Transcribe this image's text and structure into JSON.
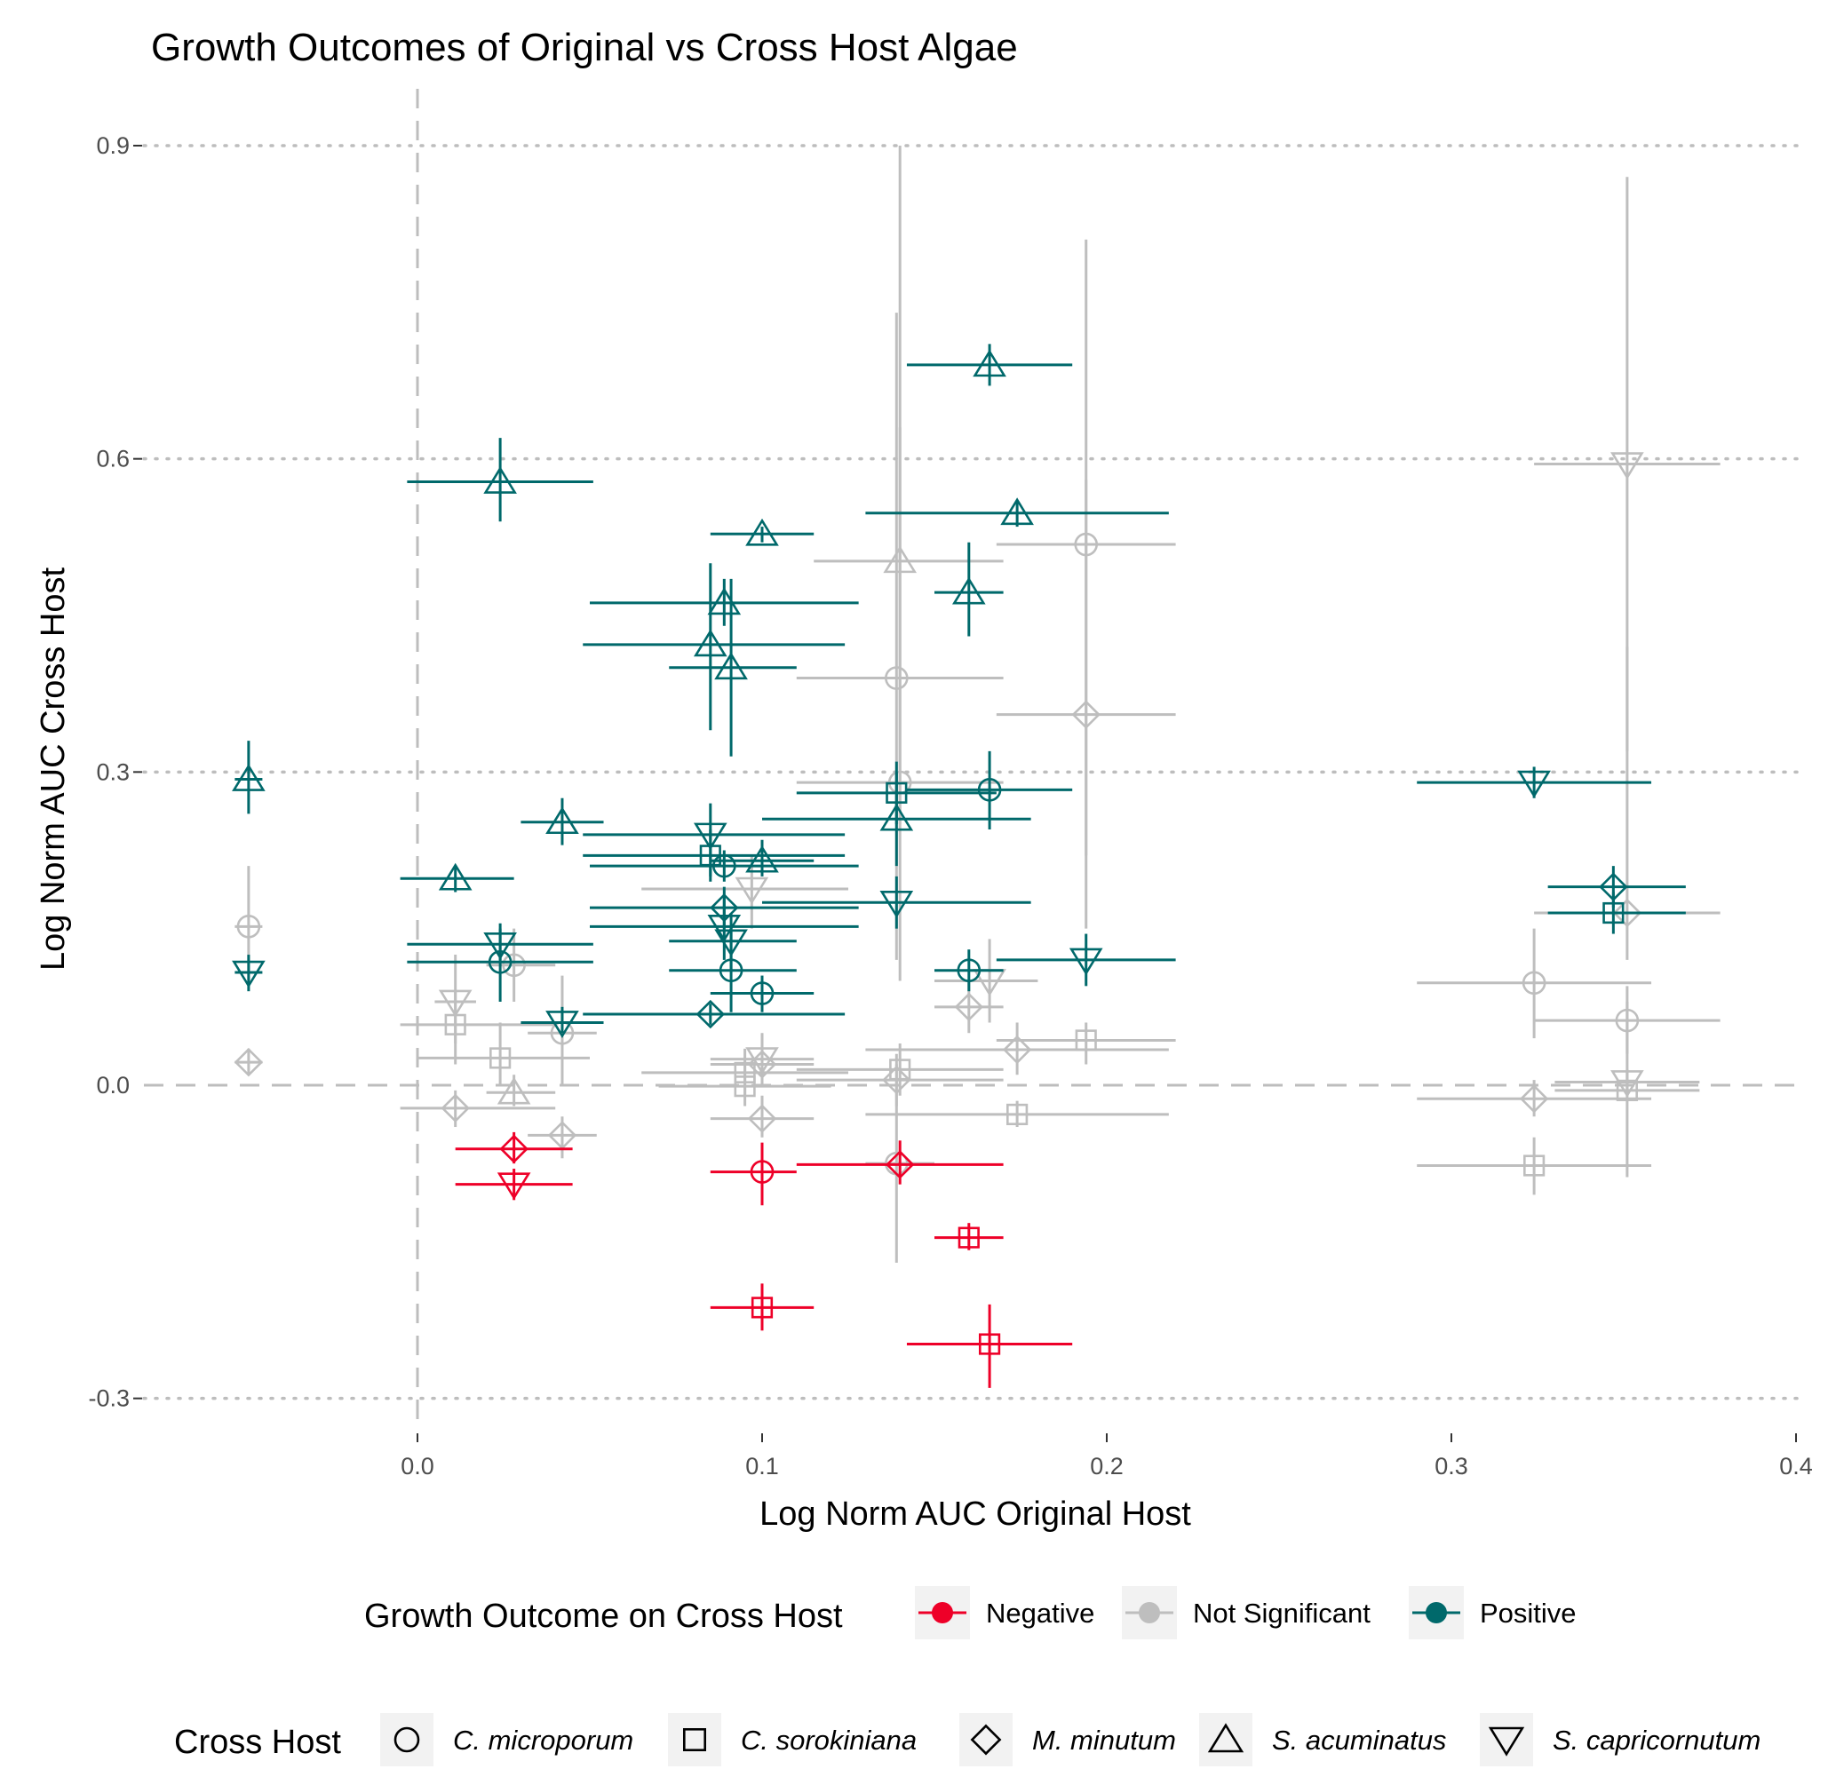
{
  "chart_data": {
    "type": "scatter",
    "title": "Growth Outcomes of Original vs Cross Host Algae",
    "xlabel": "Log Norm AUC Original Host",
    "ylabel": "Log Norm AUC Cross Host",
    "xlim": [
      -0.08,
      0.4
    ],
    "ylim": [
      -0.33,
      0.97
    ],
    "x_ticks": [
      0.0,
      0.1,
      0.2,
      0.3,
      0.4
    ],
    "x_tick_labels": [
      "0.0",
      "0.1",
      "0.2",
      "0.3",
      "0.4"
    ],
    "y_ticks": [
      -0.3,
      0.3,
      0.6,
      0.9
    ],
    "y_tick_labels": [
      "-0.3",
      "0.3",
      "0.6",
      "0.9"
    ],
    "y_zero_label": "0.0",
    "y_gridlines": [
      -0.3,
      0.3,
      0.6,
      0.9
    ],
    "reference_lines": {
      "x": 0,
      "y": 0
    },
    "colors": {
      "Negative": "#ee0028",
      "Not Significant": "#bebebe",
      "Positive": "#00696b"
    },
    "legend_outcome": {
      "title": "Growth Outcome on Cross Host",
      "entries": [
        "Negative",
        "Not Significant",
        "Positive"
      ]
    },
    "legend_host": {
      "title": "Cross Host",
      "entries": [
        {
          "label": "C. microporum",
          "shape": "circle"
        },
        {
          "label": "C. sorokiniana",
          "shape": "square"
        },
        {
          "label": "M. minutum",
          "shape": "diamond"
        },
        {
          "label": "S. acuminatus",
          "shape": "triangle-up"
        },
        {
          "label": "S. capricornutum",
          "shape": "triangle-down"
        }
      ]
    },
    "points": [
      {
        "x": -0.049,
        "y": 0.152,
        "xl": -0.053,
        "xh": -0.045,
        "yl": 0.1,
        "yh": 0.21,
        "outcome": "Not Significant",
        "host": "circle"
      },
      {
        "x": -0.049,
        "y": 0.022,
        "xl": -0.053,
        "xh": -0.045,
        "yl": 0.01,
        "yh": 0.035,
        "outcome": "Not Significant",
        "host": "diamond"
      },
      {
        "x": 0.011,
        "y": 0.08,
        "xl": 0.005,
        "xh": 0.017,
        "yl": 0.04,
        "yh": 0.125,
        "outcome": "Not Significant",
        "host": "triangle-down"
      },
      {
        "x": 0.011,
        "y": 0.058,
        "xl": -0.005,
        "xh": 0.04,
        "yl": 0.02,
        "yh": 0.09,
        "outcome": "Not Significant",
        "host": "square"
      },
      {
        "x": 0.011,
        "y": -0.022,
        "xl": -0.005,
        "xh": 0.04,
        "yl": -0.04,
        "yh": -0.005,
        "outcome": "Not Significant",
        "host": "diamond"
      },
      {
        "x": 0.024,
        "y": 0.026,
        "xl": 0.0,
        "xh": 0.05,
        "yl": 0.0,
        "yh": 0.06,
        "outcome": "Not Significant",
        "host": "square"
      },
      {
        "x": 0.028,
        "y": 0.115,
        "xl": 0.02,
        "xh": 0.04,
        "yl": 0.08,
        "yh": 0.15,
        "outcome": "Not Significant",
        "host": "circle"
      },
      {
        "x": 0.028,
        "y": -0.007,
        "xl": 0.02,
        "xh": 0.04,
        "yl": -0.02,
        "yh": 0.01,
        "outcome": "Not Significant",
        "host": "triangle-up"
      },
      {
        "x": 0.042,
        "y": 0.05,
        "xl": 0.032,
        "xh": 0.052,
        "yl": 0.0,
        "yh": 0.105,
        "outcome": "Not Significant",
        "host": "circle"
      },
      {
        "x": 0.042,
        "y": -0.048,
        "xl": 0.032,
        "xh": 0.052,
        "yl": -0.07,
        "yh": -0.03,
        "outcome": "Not Significant",
        "host": "diamond"
      },
      {
        "x": 0.095,
        "y": 0.012,
        "xl": 0.065,
        "xh": 0.125,
        "yl": -0.01,
        "yh": 0.035,
        "outcome": "Not Significant",
        "host": "square"
      },
      {
        "x": 0.095,
        "y": -0.001,
        "xl": 0.07,
        "xh": 0.12,
        "yl": -0.02,
        "yh": 0.02,
        "outcome": "Not Significant",
        "host": "square"
      },
      {
        "x": 0.097,
        "y": 0.188,
        "xl": 0.065,
        "xh": 0.125,
        "yl": 0.15,
        "yh": 0.22,
        "outcome": "Not Significant",
        "host": "triangle-down"
      },
      {
        "x": 0.1,
        "y": 0.025,
        "xl": 0.085,
        "xh": 0.115,
        "yl": 0.0,
        "yh": 0.05,
        "outcome": "Not Significant",
        "host": "triangle-down"
      },
      {
        "x": 0.1,
        "y": 0.02,
        "xl": 0.085,
        "xh": 0.115,
        "yl": 0.0,
        "yh": 0.04,
        "outcome": "Not Significant",
        "host": "diamond"
      },
      {
        "x": 0.1,
        "y": -0.032,
        "xl": 0.085,
        "xh": 0.115,
        "yl": -0.05,
        "yh": -0.01,
        "outcome": "Not Significant",
        "host": "diamond"
      },
      {
        "x": 0.139,
        "y": 0.39,
        "xl": 0.11,
        "xh": 0.17,
        "yl": 0.12,
        "yh": 0.74,
        "outcome": "Not Significant",
        "host": "circle"
      },
      {
        "x": 0.14,
        "y": 0.29,
        "xl": 0.11,
        "xh": 0.17,
        "yl": 0.1,
        "yh": 0.63,
        "outcome": "Not Significant",
        "host": "circle"
      },
      {
        "x": 0.14,
        "y": 0.502,
        "xl": 0.115,
        "xh": 0.17,
        "yl": 0.25,
        "yh": 0.9,
        "outcome": "Not Significant",
        "host": "triangle-up"
      },
      {
        "x": 0.14,
        "y": 0.015,
        "xl": 0.11,
        "xh": 0.17,
        "yl": -0.01,
        "yh": 0.04,
        "outcome": "Not Significant",
        "host": "square"
      },
      {
        "x": 0.139,
        "y": 0.005,
        "xl": 0.11,
        "xh": 0.17,
        "yl": -0.02,
        "yh": 0.03,
        "outcome": "Not Significant",
        "host": "diamond"
      },
      {
        "x": 0.139,
        "y": -0.075,
        "xl": 0.13,
        "xh": 0.15,
        "yl": -0.17,
        "yh": 0.02,
        "outcome": "Not Significant",
        "host": "circle"
      },
      {
        "x": 0.16,
        "y": 0.075,
        "xl": 0.15,
        "xh": 0.17,
        "yl": 0.05,
        "yh": 0.1,
        "outcome": "Not Significant",
        "host": "diamond"
      },
      {
        "x": 0.166,
        "y": 0.1,
        "xl": 0.15,
        "xh": 0.18,
        "yl": 0.06,
        "yh": 0.14,
        "outcome": "Not Significant",
        "host": "triangle-down"
      },
      {
        "x": 0.174,
        "y": 0.034,
        "xl": 0.13,
        "xh": 0.218,
        "yl": 0.01,
        "yh": 0.06,
        "outcome": "Not Significant",
        "host": "diamond"
      },
      {
        "x": 0.174,
        "y": -0.028,
        "xl": 0.13,
        "xh": 0.218,
        "yl": -0.04,
        "yh": -0.015,
        "outcome": "Not Significant",
        "host": "square"
      },
      {
        "x": 0.194,
        "y": 0.518,
        "xl": 0.168,
        "xh": 0.22,
        "yl": 0.22,
        "yh": 0.81,
        "outcome": "Not Significant",
        "host": "circle"
      },
      {
        "x": 0.194,
        "y": 0.355,
        "xl": 0.168,
        "xh": 0.22,
        "yl": 0.15,
        "yh": 0.58,
        "outcome": "Not Significant",
        "host": "diamond"
      },
      {
        "x": 0.194,
        "y": 0.043,
        "xl": 0.168,
        "xh": 0.22,
        "yl": 0.02,
        "yh": 0.06,
        "outcome": "Not Significant",
        "host": "square"
      },
      {
        "x": 0.324,
        "y": 0.098,
        "xl": 0.29,
        "xh": 0.358,
        "yl": 0.045,
        "yh": 0.15,
        "outcome": "Not Significant",
        "host": "circle"
      },
      {
        "x": 0.324,
        "y": -0.013,
        "xl": 0.29,
        "xh": 0.358,
        "yl": -0.03,
        "yh": 0.005,
        "outcome": "Not Significant",
        "host": "diamond"
      },
      {
        "x": 0.324,
        "y": -0.077,
        "xl": 0.29,
        "xh": 0.358,
        "yl": -0.105,
        "yh": -0.05,
        "outcome": "Not Significant",
        "host": "square"
      },
      {
        "x": 0.351,
        "y": 0.595,
        "xl": 0.324,
        "xh": 0.378,
        "yl": 0.32,
        "yh": 0.87,
        "outcome": "Not Significant",
        "host": "triangle-down"
      },
      {
        "x": 0.351,
        "y": 0.165,
        "xl": 0.324,
        "xh": 0.378,
        "yl": 0.12,
        "yh": 0.42,
        "outcome": "Not Significant",
        "host": "diamond"
      },
      {
        "x": 0.351,
        "y": 0.062,
        "xl": 0.324,
        "xh": 0.378,
        "yl": 0.03,
        "yh": 0.095,
        "outcome": "Not Significant",
        "host": "circle"
      },
      {
        "x": 0.351,
        "y": 0.003,
        "xl": 0.33,
        "xh": 0.372,
        "yl": -0.01,
        "yh": 0.015,
        "outcome": "Not Significant",
        "host": "triangle-down"
      },
      {
        "x": 0.351,
        "y": -0.005,
        "xl": 0.33,
        "xh": 0.372,
        "yl": -0.088,
        "yh": 0.08,
        "outcome": "Not Significant",
        "host": "square"
      },
      {
        "x": 0.028,
        "y": -0.061,
        "xl": 0.011,
        "xh": 0.045,
        "yl": -0.075,
        "yh": -0.045,
        "outcome": "Negative",
        "host": "diamond"
      },
      {
        "x": 0.028,
        "y": -0.095,
        "xl": 0.011,
        "xh": 0.045,
        "yl": -0.11,
        "yh": -0.08,
        "outcome": "Negative",
        "host": "triangle-down"
      },
      {
        "x": 0.1,
        "y": -0.083,
        "xl": 0.085,
        "xh": 0.11,
        "yl": -0.115,
        "yh": -0.055,
        "outcome": "Negative",
        "host": "circle"
      },
      {
        "x": 0.1,
        "y": -0.213,
        "xl": 0.085,
        "xh": 0.115,
        "yl": -0.235,
        "yh": -0.19,
        "outcome": "Negative",
        "host": "square"
      },
      {
        "x": 0.14,
        "y": -0.076,
        "xl": 0.11,
        "xh": 0.17,
        "yl": -0.095,
        "yh": -0.053,
        "outcome": "Negative",
        "host": "diamond"
      },
      {
        "x": 0.16,
        "y": -0.146,
        "xl": 0.15,
        "xh": 0.17,
        "yl": -0.158,
        "yh": -0.132,
        "outcome": "Negative",
        "host": "square"
      },
      {
        "x": 0.166,
        "y": -0.248,
        "xl": 0.142,
        "xh": 0.19,
        "yl": -0.29,
        "yh": -0.21,
        "outcome": "Negative",
        "host": "square"
      },
      {
        "x": -0.049,
        "y": 0.293,
        "xl": -0.053,
        "xh": -0.045,
        "yl": 0.26,
        "yh": 0.33,
        "outcome": "Positive",
        "host": "triangle-up"
      },
      {
        "x": -0.049,
        "y": 0.108,
        "xl": -0.053,
        "xh": -0.045,
        "yl": 0.09,
        "yh": 0.125,
        "outcome": "Positive",
        "host": "triangle-down"
      },
      {
        "x": 0.011,
        "y": 0.198,
        "xl": -0.005,
        "xh": 0.028,
        "yl": 0.185,
        "yh": 0.21,
        "outcome": "Positive",
        "host": "triangle-up"
      },
      {
        "x": 0.024,
        "y": 0.578,
        "xl": -0.003,
        "xh": 0.051,
        "yl": 0.54,
        "yh": 0.62,
        "outcome": "Positive",
        "host": "triangle-up"
      },
      {
        "x": 0.024,
        "y": 0.135,
        "xl": -0.003,
        "xh": 0.051,
        "yl": 0.12,
        "yh": 0.15,
        "outcome": "Positive",
        "host": "triangle-down"
      },
      {
        "x": 0.024,
        "y": 0.118,
        "xl": -0.003,
        "xh": 0.051,
        "yl": 0.08,
        "yh": 0.155,
        "outcome": "Positive",
        "host": "circle"
      },
      {
        "x": 0.042,
        "y": 0.252,
        "xl": 0.03,
        "xh": 0.054,
        "yl": 0.23,
        "yh": 0.275,
        "outcome": "Positive",
        "host": "triangle-up"
      },
      {
        "x": 0.042,
        "y": 0.06,
        "xl": 0.03,
        "xh": 0.054,
        "yl": 0.05,
        "yh": 0.075,
        "outcome": "Positive",
        "host": "triangle-down"
      },
      {
        "x": 0.085,
        "y": 0.422,
        "xl": 0.048,
        "xh": 0.124,
        "yl": 0.34,
        "yh": 0.5,
        "outcome": "Positive",
        "host": "triangle-up"
      },
      {
        "x": 0.085,
        "y": 0.24,
        "xl": 0.048,
        "xh": 0.124,
        "yl": 0.2,
        "yh": 0.27,
        "outcome": "Positive",
        "host": "triangle-down"
      },
      {
        "x": 0.085,
        "y": 0.22,
        "xl": 0.048,
        "xh": 0.124,
        "yl": 0.195,
        "yh": 0.245,
        "outcome": "Positive",
        "host": "square"
      },
      {
        "x": 0.085,
        "y": 0.068,
        "xl": 0.048,
        "xh": 0.124,
        "yl": 0.058,
        "yh": 0.078,
        "outcome": "Positive",
        "host": "diamond"
      },
      {
        "x": 0.089,
        "y": 0.462,
        "xl": 0.05,
        "xh": 0.128,
        "yl": 0.44,
        "yh": 0.485,
        "outcome": "Positive",
        "host": "triangle-up"
      },
      {
        "x": 0.089,
        "y": 0.21,
        "xl": 0.05,
        "xh": 0.128,
        "yl": 0.195,
        "yh": 0.225,
        "outcome": "Positive",
        "host": "circle"
      },
      {
        "x": 0.089,
        "y": 0.17,
        "xl": 0.05,
        "xh": 0.128,
        "yl": 0.15,
        "yh": 0.19,
        "outcome": "Positive",
        "host": "diamond"
      },
      {
        "x": 0.089,
        "y": 0.152,
        "xl": 0.05,
        "xh": 0.128,
        "yl": 0.12,
        "yh": 0.18,
        "outcome": "Positive",
        "host": "triangle-down"
      },
      {
        "x": 0.091,
        "y": 0.4,
        "xl": 0.073,
        "xh": 0.11,
        "yl": 0.315,
        "yh": 0.485,
        "outcome": "Positive",
        "host": "triangle-up"
      },
      {
        "x": 0.091,
        "y": 0.138,
        "xl": 0.073,
        "xh": 0.11,
        "yl": 0.11,
        "yh": 0.165,
        "outcome": "Positive",
        "host": "triangle-down"
      },
      {
        "x": 0.091,
        "y": 0.11,
        "xl": 0.073,
        "xh": 0.11,
        "yl": 0.07,
        "yh": 0.15,
        "outcome": "Positive",
        "host": "circle"
      },
      {
        "x": 0.1,
        "y": 0.528,
        "xl": 0.085,
        "xh": 0.115,
        "yl": 0.52,
        "yh": 0.535,
        "outcome": "Positive",
        "host": "triangle-up"
      },
      {
        "x": 0.1,
        "y": 0.215,
        "xl": 0.085,
        "xh": 0.115,
        "yl": 0.2,
        "yh": 0.235,
        "outcome": "Positive",
        "host": "triangle-up"
      },
      {
        "x": 0.1,
        "y": 0.088,
        "xl": 0.085,
        "xh": 0.115,
        "yl": 0.07,
        "yh": 0.105,
        "outcome": "Positive",
        "host": "circle"
      },
      {
        "x": 0.139,
        "y": 0.28,
        "xl": 0.11,
        "xh": 0.168,
        "yl": 0.25,
        "yh": 0.31,
        "outcome": "Positive",
        "host": "square"
      },
      {
        "x": 0.139,
        "y": 0.255,
        "xl": 0.1,
        "xh": 0.178,
        "yl": 0.21,
        "yh": 0.3,
        "outcome": "Positive",
        "host": "triangle-up"
      },
      {
        "x": 0.139,
        "y": 0.175,
        "xl": 0.1,
        "xh": 0.178,
        "yl": 0.15,
        "yh": 0.2,
        "outcome": "Positive",
        "host": "triangle-down"
      },
      {
        "x": 0.16,
        "y": 0.472,
        "xl": 0.15,
        "xh": 0.17,
        "yl": 0.43,
        "yh": 0.52,
        "outcome": "Positive",
        "host": "triangle-up"
      },
      {
        "x": 0.16,
        "y": 0.11,
        "xl": 0.15,
        "xh": 0.17,
        "yl": 0.09,
        "yh": 0.13,
        "outcome": "Positive",
        "host": "circle"
      },
      {
        "x": 0.166,
        "y": 0.69,
        "xl": 0.142,
        "xh": 0.19,
        "yl": 0.67,
        "yh": 0.71,
        "outcome": "Positive",
        "host": "triangle-up"
      },
      {
        "x": 0.166,
        "y": 0.283,
        "xl": 0.142,
        "xh": 0.19,
        "yl": 0.245,
        "yh": 0.32,
        "outcome": "Positive",
        "host": "circle"
      },
      {
        "x": 0.174,
        "y": 0.548,
        "xl": 0.13,
        "xh": 0.218,
        "yl": 0.535,
        "yh": 0.56,
        "outcome": "Positive",
        "host": "triangle-up"
      },
      {
        "x": 0.194,
        "y": 0.12,
        "xl": 0.168,
        "xh": 0.22,
        "yl": 0.095,
        "yh": 0.145,
        "outcome": "Positive",
        "host": "triangle-down"
      },
      {
        "x": 0.324,
        "y": 0.29,
        "xl": 0.29,
        "xh": 0.358,
        "yl": 0.275,
        "yh": 0.305,
        "outcome": "Positive",
        "host": "triangle-down"
      },
      {
        "x": 0.347,
        "y": 0.19,
        "xl": 0.328,
        "xh": 0.368,
        "yl": 0.17,
        "yh": 0.21,
        "outcome": "Positive",
        "host": "diamond"
      },
      {
        "x": 0.347,
        "y": 0.165,
        "xl": 0.328,
        "xh": 0.368,
        "yl": 0.145,
        "yh": 0.185,
        "outcome": "Positive",
        "host": "square"
      }
    ]
  }
}
